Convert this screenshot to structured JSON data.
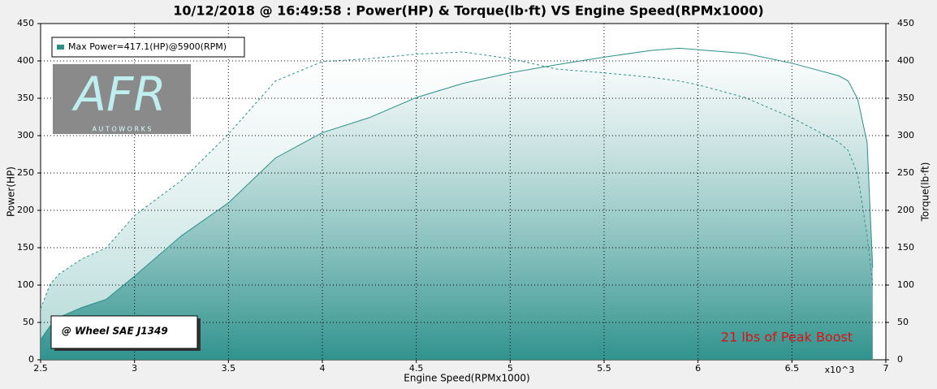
{
  "chart_data": {
    "type": "line",
    "title": "10/12/2018 @ 16:49:58 : Power(HP) & Torque(lb·ft) VS Engine Speed(RPMx1000)",
    "x_label": "Engine Speed(RPMx1000)",
    "y_label": "Power(HP)",
    "y2_label": "Torque(lb·ft)",
    "x_multiplier": "x10^3",
    "logo": {
      "title": "AFR",
      "subtitle": "A U T O W O R K S"
    },
    "annotations": [
      "@ Wheel SAE J1349",
      "21 lbs of Peak Boost"
    ],
    "x": [
      2.5,
      2.55,
      2.6,
      2.72,
      2.85,
      3.0,
      3.25,
      3.5,
      3.75,
      4.0,
      4.25,
      4.5,
      4.75,
      5.0,
      5.25,
      5.5,
      5.75,
      5.9,
      6.0,
      6.25,
      6.5,
      6.75,
      6.8,
      6.85,
      6.9,
      6.93
    ],
    "series": [
      {
        "name": "Max Power=417.1(HP)@5900(RPM)",
        "color": "#2a8f8a",
        "dash": false,
        "values": [
          27,
          45,
          57,
          70,
          81,
          112,
          166,
          210,
          270,
          304,
          324,
          351,
          370,
          384,
          395,
          405,
          414,
          417,
          415,
          410,
          397,
          380,
          373,
          349,
          291,
          123
        ]
      },
      {
        "color": "#2a8f8a",
        "dash": true,
        "axis": "y2",
        "values": [
          68,
          101,
          115,
          135,
          150,
          193,
          240,
          302,
          373,
          399,
          403,
          409,
          412,
          403,
          389,
          384,
          378,
          373,
          368,
          351,
          324,
          291,
          280,
          248,
          166,
          101
        ]
      }
    ],
    "xlim": [
      2.5,
      7
    ],
    "xticks": [
      2.5,
      3,
      3.5,
      4,
      4.5,
      5,
      5.5,
      6,
      6.5,
      7
    ],
    "ylim": [
      0,
      450
    ],
    "yticks": [
      0,
      50,
      100,
      150,
      200,
      250,
      300,
      350,
      400,
      450
    ],
    "y2lim": [
      0,
      450
    ],
    "y2ticks": [
      0,
      50,
      100,
      150,
      200,
      250,
      300,
      350,
      400,
      450
    ],
    "grid": true
  }
}
